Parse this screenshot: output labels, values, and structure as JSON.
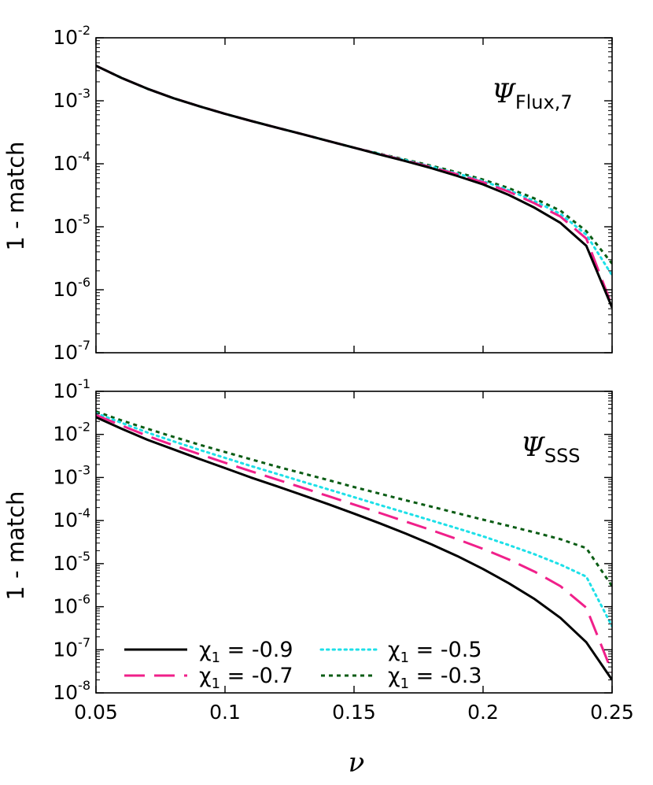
{
  "chart_data": [
    {
      "type": "line",
      "panel_label": "Ψ",
      "panel_label_sub": "Flux,7",
      "xlabel": "",
      "ylabel": "1 - match",
      "xlim": [
        0.05,
        0.25
      ],
      "ylim": [
        1e-07,
        0.01
      ],
      "yscale": "log",
      "grid": false,
      "x_ticks": [
        0.05,
        0.1,
        0.15,
        0.2,
        0.25
      ],
      "y_ticks": [
        {
          "base": "10",
          "exp": "-7"
        },
        {
          "base": "10",
          "exp": "-6"
        },
        {
          "base": "10",
          "exp": "-5"
        },
        {
          "base": "10",
          "exp": "-4"
        },
        {
          "base": "10",
          "exp": "-3"
        },
        {
          "base": "10",
          "exp": "-2"
        }
      ],
      "x": [
        0.05,
        0.06,
        0.07,
        0.08,
        0.09,
        0.1,
        0.11,
        0.12,
        0.13,
        0.14,
        0.15,
        0.16,
        0.17,
        0.18,
        0.19,
        0.2,
        0.21,
        0.22,
        0.23,
        0.24,
        0.25
      ],
      "series": [
        {
          "name": "χ1 = -0.9",
          "color": "#000000",
          "dash": "solid",
          "values": [
            0.0036,
            0.0023,
            0.00155,
            0.0011,
            0.00082,
            0.00062,
            0.00048,
            0.000375,
            0.000295,
            0.00023,
            0.00018,
            0.00014,
            0.00011,
            8.5e-05,
            6.4e-05,
            4.7e-05,
            3.2e-05,
            2e-05,
            1.15e-05,
            5e-06,
            5.2e-07
          ]
        },
        {
          "name": "χ1 = -0.7",
          "color": "#f0208a",
          "dash": "long",
          "values": [
            0.0036,
            0.0023,
            0.00155,
            0.0011,
            0.00082,
            0.00062,
            0.00048,
            0.000375,
            0.000295,
            0.00023,
            0.00018,
            0.000142,
            0.000112,
            8.8e-05,
            6.8e-05,
            5.1e-05,
            3.6e-05,
            2.35e-05,
            1.45e-05,
            6.5e-06,
            5.5e-07
          ]
        },
        {
          "name": "χ1 = -0.5",
          "color": "#1ee0e8",
          "dash": "dot",
          "values": [
            0.0036,
            0.0023,
            0.00155,
            0.0011,
            0.00082,
            0.00062,
            0.00048,
            0.000375,
            0.000295,
            0.00023,
            0.00018,
            0.000143,
            0.000114,
            9e-05,
            7e-05,
            5.3e-05,
            3.8e-05,
            2.55e-05,
            1.6e-05,
            7.5e-06,
            1.7e-06
          ]
        },
        {
          "name": "χ1 = -0.3",
          "color": "#0a5c14",
          "dash": "short",
          "values": [
            0.0036,
            0.0023,
            0.00155,
            0.0011,
            0.00082,
            0.00062,
            0.00048,
            0.000375,
            0.000295,
            0.00023,
            0.00018,
            0.000144,
            0.000116,
            9.3e-05,
            7.3e-05,
            5.6e-05,
            4.1e-05,
            2.8e-05,
            1.8e-05,
            8.5e-06,
            2.6e-06
          ]
        }
      ]
    },
    {
      "type": "line",
      "panel_label": "Ψ",
      "panel_label_sub": "SSS",
      "xlabel": "ν",
      "ylabel": "1 - match",
      "xlim": [
        0.05,
        0.25
      ],
      "ylim": [
        1e-08,
        0.1
      ],
      "yscale": "log",
      "grid": false,
      "legend_position": "bottom",
      "x_ticks": [
        0.05,
        0.1,
        0.15,
        0.2,
        0.25
      ],
      "x_tick_labels": [
        "0.05",
        "0.1",
        "0.15",
        "0.2",
        "0.25"
      ],
      "y_ticks": [
        {
          "base": "10",
          "exp": "-8"
        },
        {
          "base": "10",
          "exp": "-7"
        },
        {
          "base": "10",
          "exp": "-6"
        },
        {
          "base": "10",
          "exp": "-5"
        },
        {
          "base": "10",
          "exp": "-4"
        },
        {
          "base": "10",
          "exp": "-3"
        },
        {
          "base": "10",
          "exp": "-2"
        },
        {
          "base": "10",
          "exp": "-1"
        }
      ],
      "x": [
        0.05,
        0.06,
        0.07,
        0.08,
        0.09,
        0.1,
        0.11,
        0.12,
        0.13,
        0.14,
        0.15,
        0.16,
        0.17,
        0.18,
        0.19,
        0.2,
        0.21,
        0.22,
        0.23,
        0.24,
        0.25
      ],
      "series": [
        {
          "name": "χ1 = -0.9",
          "name_base": "χ",
          "name_sub": "1",
          "name_rest": " = -0.9",
          "color": "#000000",
          "dash": "solid",
          "values": [
            0.025,
            0.0135,
            0.0075,
            0.0045,
            0.0027,
            0.00165,
            0.001,
            0.00063,
            0.00039,
            0.00024,
            0.000145,
            8.6e-05,
            5e-05,
            2.8e-05,
            1.5e-05,
            7.5e-06,
            3.5e-06,
            1.5e-06,
            5.5e-07,
            1.5e-07,
            2e-08
          ]
        },
        {
          "name": "χ1 = -0.7",
          "name_base": "χ",
          "name_sub": "1",
          "name_rest": " = -0.7",
          "color": "#f0208a",
          "dash": "long",
          "values": [
            0.028,
            0.016,
            0.0092,
            0.0056,
            0.0035,
            0.0022,
            0.0014,
            0.0009,
            0.00058,
            0.00037,
            0.000235,
            0.00015,
            9.5e-05,
            6e-05,
            3.7e-05,
            2.2e-05,
            1.25e-05,
            6.5e-06,
            3e-06,
            9.5e-07,
            3e-08
          ]
        },
        {
          "name": "χ1 = -0.5",
          "name_base": "χ",
          "name_sub": "1",
          "name_rest": " = -0.5",
          "color": "#1ee0e8",
          "dash": "dot",
          "values": [
            0.031,
            0.0185,
            0.011,
            0.0069,
            0.0044,
            0.00285,
            0.00185,
            0.00122,
            0.0008,
            0.00053,
            0.00035,
            0.00023,
            0.000152,
            0.0001,
            6.6e-05,
            4.3e-05,
            2.7e-05,
            1.65e-05,
            9.5e-06,
            5e-06,
            3.5e-07
          ]
        },
        {
          "name": "χ1 = -0.3",
          "name_base": "χ",
          "name_sub": "1",
          "name_rest": " = -0.3",
          "color": "#0a5c14",
          "dash": "short",
          "values": [
            0.034,
            0.021,
            0.0135,
            0.0088,
            0.0058,
            0.0039,
            0.00265,
            0.0018,
            0.00125,
            0.00087,
            0.0006,
            0.00042,
            0.000295,
            0.00021,
            0.000148,
            0.000105,
            7.5e-05,
            5.3e-05,
            3.7e-05,
            2.3e-05,
            3e-06
          ]
        }
      ]
    }
  ]
}
